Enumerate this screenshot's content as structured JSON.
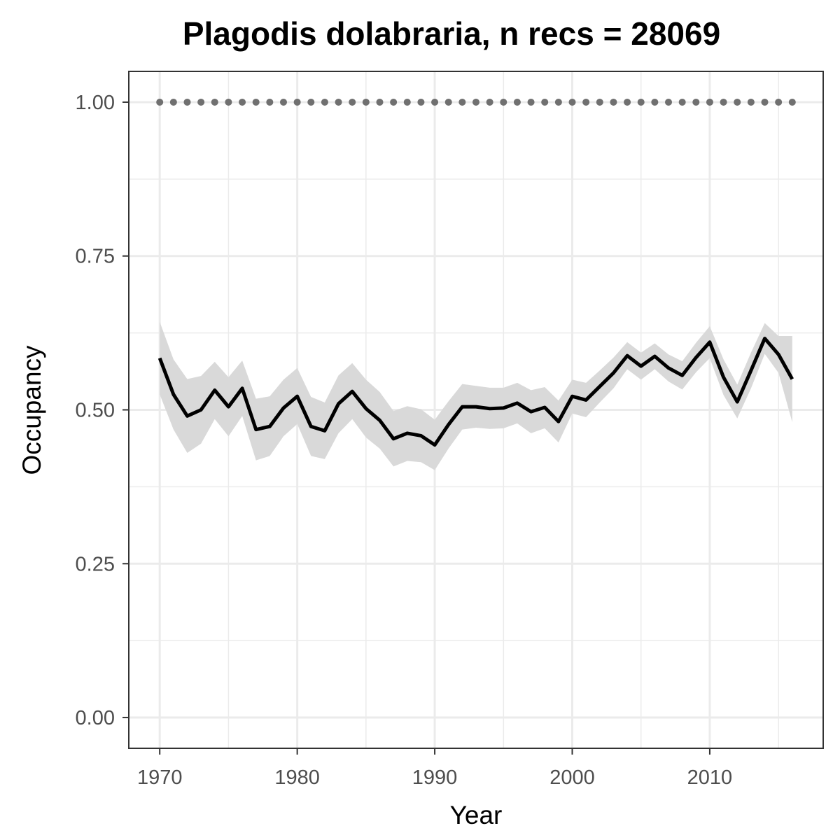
{
  "chart_data": {
    "type": "line",
    "title": "Plagodis dolabraria, n recs = 28069",
    "xlabel": "Year",
    "ylabel": "Occupancy",
    "xlim": [
      1967.75,
      2018.25
    ],
    "ylim": [
      -0.05,
      1.05
    ],
    "x_ticks": [
      1970,
      1980,
      1990,
      2000,
      2010
    ],
    "x_tick_labels": [
      "1970",
      "1980",
      "1990",
      "2000",
      "2010"
    ],
    "y_ticks": [
      0,
      0.25,
      0.5,
      0.75,
      1.0
    ],
    "y_tick_labels": [
      "0.00",
      "0.25",
      "0.50",
      "0.75",
      "1.00"
    ],
    "grid": true,
    "colors": {
      "line": "#000000",
      "ribbon": "#d9d9d9",
      "points": "#707070",
      "grid": "#ebebeb",
      "border": "#333333",
      "tick_text": "#4d4d4d"
    },
    "x": [
      1970,
      1971,
      1972,
      1973,
      1974,
      1975,
      1976,
      1977,
      1978,
      1979,
      1980,
      1981,
      1982,
      1983,
      1984,
      1985,
      1986,
      1987,
      1988,
      1989,
      1990,
      1991,
      1992,
      1993,
      1994,
      1995,
      1996,
      1997,
      1998,
      1999,
      2000,
      2001,
      2002,
      2003,
      2004,
      2005,
      2006,
      2007,
      2008,
      2009,
      2010,
      2011,
      2012,
      2013,
      2014,
      2015,
      2016
    ],
    "series": [
      {
        "type": "line",
        "values": [
          0.584,
          0.525,
          0.49,
          0.5,
          0.532,
          0.505,
          0.535,
          0.468,
          0.473,
          0.503,
          0.522,
          0.473,
          0.466,
          0.51,
          0.53,
          0.502,
          0.483,
          0.453,
          0.462,
          0.458,
          0.443,
          0.476,
          0.505,
          0.505,
          0.502,
          0.503,
          0.511,
          0.497,
          0.504,
          0.481,
          0.522,
          0.516,
          0.538,
          0.56,
          0.588,
          0.571,
          0.587,
          0.568,
          0.556,
          0.585,
          0.61,
          0.553,
          0.513,
          0.564,
          0.616,
          0.59,
          0.55
        ],
        "lower": [
          0.525,
          0.468,
          0.43,
          0.445,
          0.485,
          0.457,
          0.49,
          0.418,
          0.425,
          0.457,
          0.477,
          0.425,
          0.42,
          0.462,
          0.485,
          0.455,
          0.437,
          0.408,
          0.417,
          0.415,
          0.402,
          0.437,
          0.468,
          0.471,
          0.469,
          0.47,
          0.478,
          0.462,
          0.47,
          0.447,
          0.494,
          0.488,
          0.512,
          0.535,
          0.566,
          0.549,
          0.566,
          0.546,
          0.533,
          0.561,
          0.584,
          0.524,
          0.486,
          0.535,
          0.591,
          0.56,
          0.48
        ],
        "upper": [
          0.643,
          0.582,
          0.55,
          0.555,
          0.578,
          0.553,
          0.58,
          0.518,
          0.522,
          0.549,
          0.568,
          0.521,
          0.512,
          0.556,
          0.576,
          0.549,
          0.529,
          0.498,
          0.506,
          0.501,
          0.484,
          0.514,
          0.542,
          0.539,
          0.536,
          0.536,
          0.544,
          0.532,
          0.537,
          0.515,
          0.549,
          0.544,
          0.564,
          0.585,
          0.61,
          0.593,
          0.608,
          0.59,
          0.579,
          0.609,
          0.636,
          0.582,
          0.541,
          0.593,
          0.641,
          0.62,
          0.62
        ]
      },
      {
        "type": "points",
        "x": [
          1970,
          1971,
          1972,
          1973,
          1974,
          1975,
          1976,
          1977,
          1978,
          1979,
          1980,
          1981,
          1982,
          1983,
          1984,
          1985,
          1986,
          1987,
          1988,
          1989,
          1990,
          1991,
          1992,
          1993,
          1994,
          1995,
          1996,
          1997,
          1998,
          1999,
          2000,
          2001,
          2002,
          2003,
          2004,
          2005,
          2006,
          2007,
          2008,
          2009,
          2010,
          2011,
          2012,
          2013,
          2014,
          2015,
          2016
        ],
        "values": [
          1,
          1,
          1,
          1,
          1,
          1,
          1,
          1,
          1,
          1,
          1,
          1,
          1,
          1,
          1,
          1,
          1,
          1,
          1,
          1,
          1,
          1,
          1,
          1,
          1,
          1,
          1,
          1,
          1,
          1,
          1,
          1,
          1,
          1,
          1,
          1,
          1,
          1,
          1,
          1,
          1,
          1,
          1,
          1,
          1,
          1,
          1
        ]
      }
    ]
  }
}
